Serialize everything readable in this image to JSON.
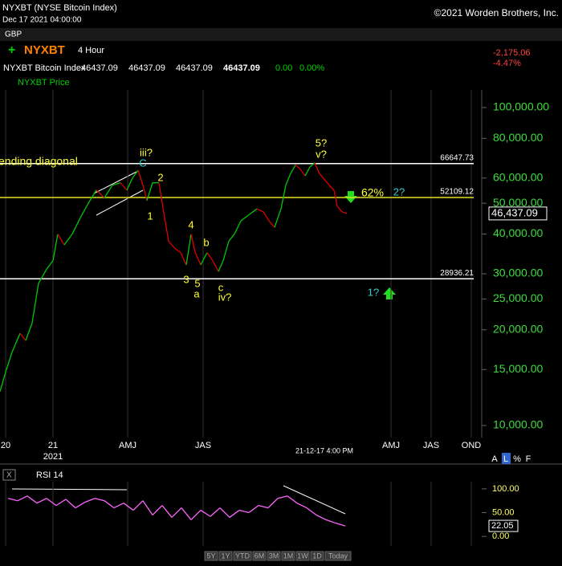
{
  "header": {
    "title": "NYXBT (NYSE Bitcoin Index)",
    "date": "Dec 17 2021 04:00:00",
    "copyright": "©2021 Worden Brothers, Inc.",
    "currency": "GBP",
    "symbol": "NYXBT",
    "interval": "4 Hour",
    "change": "-2,175.06",
    "change_pct": "-4.47%",
    "quote": {
      "name": "NYXBT Bitcoin Index",
      "open": "46437.09",
      "high": "46437.09",
      "low": "46437.09",
      "close": "46437.09",
      "chg": "0.00",
      "chg_pct": "0.00%"
    },
    "plot_name": "NYXBT Price"
  },
  "chart_data": [
    {
      "type": "line",
      "xlim": [
        0,
        600
      ],
      "ylim": [
        9165,
        113600
      ],
      "log_scale": true,
      "grid": true,
      "x": [
        0,
        8,
        15,
        25,
        32,
        40,
        48,
        58,
        66,
        72,
        80,
        90,
        100,
        110,
        120,
        130,
        140,
        150,
        158,
        165,
        172,
        178,
        183,
        190,
        198,
        205,
        210,
        218,
        225,
        232,
        238,
        243,
        250,
        258,
        265,
        272,
        278,
        285,
        292,
        300,
        310,
        320,
        328,
        335,
        342,
        350,
        356,
        362,
        368,
        374,
        380,
        386,
        392,
        398,
        405,
        410,
        416,
        420,
        426,
        432
      ],
      "values": [
        12800,
        15000,
        17000,
        19500,
        18500,
        21000,
        28000,
        31000,
        33000,
        40000,
        37000,
        40000,
        45000,
        50000,
        55000,
        52000,
        57000,
        58000,
        55000,
        60000,
        63500,
        57000,
        51000,
        58000,
        58000,
        45000,
        38000,
        36000,
        35000,
        32000,
        40000,
        35000,
        32000,
        35000,
        33000,
        30500,
        33000,
        38000,
        40000,
        44000,
        46000,
        48000,
        47000,
        44000,
        42000,
        48000,
        57000,
        62000,
        66000,
        64000,
        61000,
        65000,
        67000,
        62000,
        59000,
        57000,
        55000,
        49000,
        47000,
        46437.09
      ],
      "up_color": "#00c800",
      "down_color": "#e00000",
      "yticks": [
        {
          "value": 10000,
          "label": "10,000.00"
        },
        {
          "value": 15000,
          "label": "15,000.00"
        },
        {
          "value": 20000,
          "label": "20,000.00"
        },
        {
          "value": 25000,
          "label": "25,000.00"
        },
        {
          "value": 30000,
          "label": "30,000.00"
        },
        {
          "value": 40000,
          "label": "40,000.00"
        },
        {
          "value": 50000,
          "label": "50,000.00"
        },
        {
          "value": 60000,
          "label": "60,000.00"
        },
        {
          "value": 80000,
          "label": "80,000.00"
        },
        {
          "value": 100000,
          "label": "100,000.00"
        }
      ],
      "xticks": [
        {
          "value": 7,
          "label": "20"
        },
        {
          "value": 66,
          "label": "21"
        },
        {
          "value": 159,
          "label": "AMJ"
        },
        {
          "value": 253,
          "label": "JAS"
        },
        {
          "value": 487,
          "label": "AMJ"
        },
        {
          "value": 537,
          "label": "JAS"
        },
        {
          "value": 587,
          "label": "OND"
        }
      ],
      "year_label": "2021",
      "cursor_label": "21-12-17 4:00 PM",
      "current_value": {
        "value": 46437.09,
        "label": "46,437.09"
      },
      "levels": [
        {
          "value": 66647.73,
          "color": "#ffffff"
        },
        {
          "value": 52109.12,
          "color": "#e0e020"
        },
        {
          "value": 28936.21,
          "color": "#ffffff"
        }
      ],
      "annotations": [
        {
          "text": "ending diagonal",
          "color": "#ffff33"
        },
        {
          "text": "iii?",
          "color": "#ffff33"
        },
        {
          "text": "C",
          "color": "#33cccc"
        },
        {
          "text": "2",
          "color": "#ffff33"
        },
        {
          "text": "1",
          "color": "#ffff33"
        },
        {
          "text": "4",
          "color": "#ffff33"
        },
        {
          "text": "b",
          "color": "#ffff33"
        },
        {
          "text": "3",
          "color": "#ffff33"
        },
        {
          "text": "5",
          "color": "#ffff33"
        },
        {
          "text": "a",
          "color": "#ffff33"
        },
        {
          "text": "c",
          "color": "#ffff33"
        },
        {
          "text": "iv?",
          "color": "#ffff33"
        },
        {
          "text": "5?",
          "color": "#ffff33"
        },
        {
          "text": "v?",
          "color": "#ffff33"
        },
        {
          "text": "62%",
          "color": "#ffff33"
        },
        {
          "text": "2?",
          "color": "#33cccc"
        },
        {
          "text": "1?",
          "color": "#33cccc"
        }
      ]
    },
    {
      "type": "line",
      "title": "RSI 14",
      "color": "#ff66ff",
      "ylim": [
        -20,
        115
      ],
      "x": [
        10,
        22,
        34,
        46,
        58,
        70,
        82,
        94,
        106,
        118,
        130,
        142,
        154,
        166,
        178,
        190,
        202,
        214,
        226,
        238,
        250,
        262,
        274,
        286,
        298,
        310,
        322,
        334,
        346,
        358,
        370,
        382,
        394,
        406,
        418,
        430
      ],
      "values": [
        80,
        75,
        85,
        70,
        80,
        65,
        78,
        60,
        72,
        80,
        75,
        60,
        70,
        55,
        75,
        45,
        65,
        40,
        60,
        35,
        55,
        42,
        60,
        40,
        55,
        50,
        65,
        60,
        80,
        85,
        70,
        60,
        45,
        35,
        28,
        22.05
      ],
      "yticks": [
        {
          "value": 0,
          "label": "0.00"
        },
        {
          "value": 50,
          "label": "50.00"
        },
        {
          "value": 100,
          "label": "100.00"
        }
      ],
      "current_value": {
        "value": 22.05,
        "label": "22.05"
      }
    }
  ],
  "scale_modes": [
    "A",
    "L",
    "%",
    "F"
  ],
  "range_buttons": [
    "5Y",
    "1Y",
    "YTD",
    "6M",
    "3M",
    "1M",
    "1W",
    "1D",
    "Today"
  ]
}
